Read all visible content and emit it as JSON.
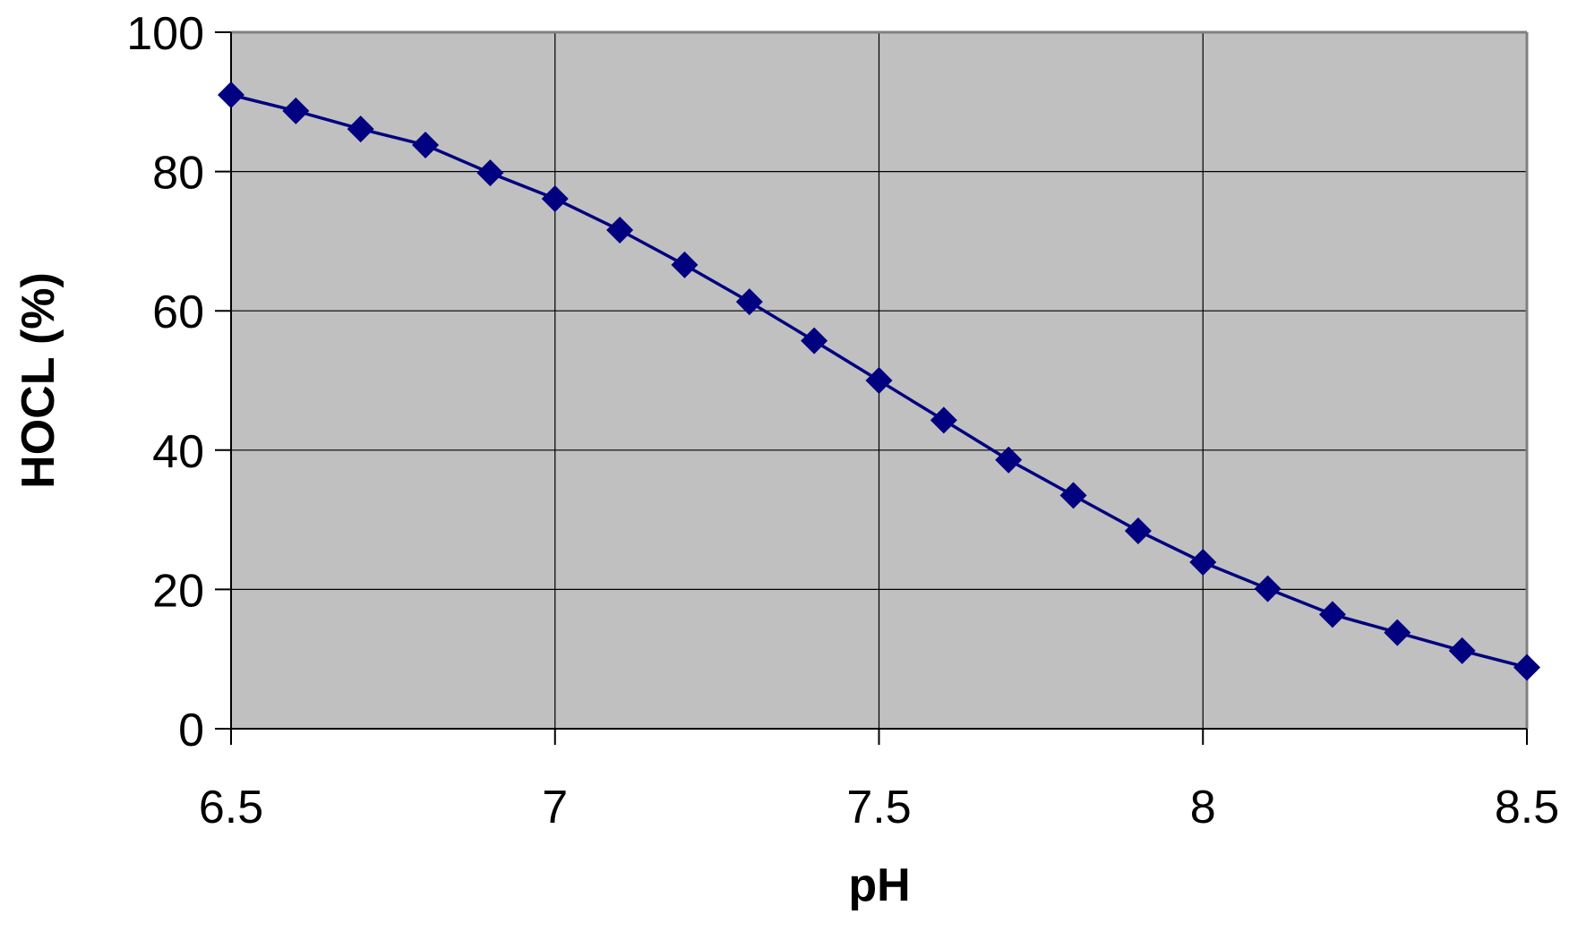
{
  "chart_data": {
    "type": "line",
    "title": "",
    "xlabel": "pH",
    "ylabel": "HOCL (%)",
    "xlim": [
      6.5,
      8.5
    ],
    "ylim": [
      0,
      100
    ],
    "x_ticks": [
      "6.5",
      "7",
      "7.5",
      "8",
      "8.5"
    ],
    "y_ticks": [
      "0",
      "20",
      "40",
      "60",
      "80",
      "100"
    ],
    "grid": true,
    "legend": "none",
    "colors": {
      "plot_background": "#c0c0c0",
      "series": "#000080",
      "gridline": "#000000"
    },
    "series": [
      {
        "marker": "diamond",
        "x": [
          6.5,
          6.6,
          6.7,
          6.8,
          6.9,
          7.0,
          7.1,
          7.2,
          7.3,
          7.4,
          7.5,
          7.6,
          7.7,
          7.8,
          7.9,
          8.0,
          8.1,
          8.2,
          8.3,
          8.4,
          8.5
        ],
        "y": [
          91,
          88.7,
          86.1,
          83.8,
          79.8,
          76.1,
          71.6,
          66.6,
          61.3,
          55.7,
          50,
          44.3,
          38.6,
          33.5,
          28.4,
          23.9,
          20.1,
          16.4,
          13.8,
          11.2,
          8.8
        ]
      }
    ]
  }
}
